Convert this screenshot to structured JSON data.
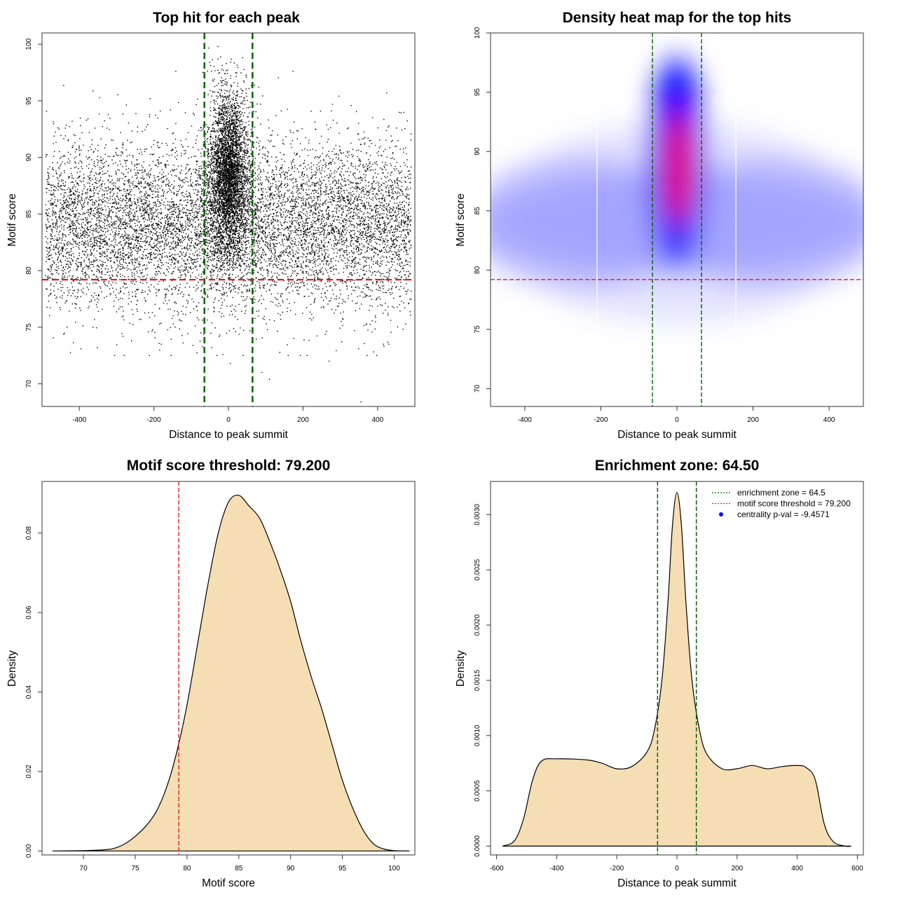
{
  "chart_data": [
    {
      "id": "p1",
      "type": "scatter",
      "title": "Top hit for each peak",
      "xlabel": "Distance to peak summit",
      "ylabel": "Motif score",
      "xlim": [
        -500,
        500
      ],
      "ylim": [
        68,
        101
      ],
      "xticks": [
        -400,
        -200,
        0,
        200,
        400
      ],
      "yticks": [
        70,
        75,
        80,
        85,
        90,
        95,
        100
      ],
      "vlines": [
        -64.5,
        64.5
      ],
      "hline": 79.2,
      "vline_color": "#006400",
      "hline_color": "#e31a1c",
      "point_color": "#000000",
      "point_count_estimate": 12000,
      "distribution": "uniform background around score 84 across -490..490 plus a dense central cluster around distance 0 and score 88"
    },
    {
      "id": "p2",
      "type": "heatmap",
      "title": "Density heat map for the top hits",
      "xlabel": "Distance to peak summit",
      "ylabel": "Motif score",
      "xlim": [
        -490,
        490
      ],
      "ylim": [
        68.5,
        100
      ],
      "xticks": [
        -400,
        -200,
        0,
        200,
        400
      ],
      "yticks": [
        70,
        75,
        80,
        85,
        90,
        95,
        100
      ],
      "vlines": [
        -64.5,
        64.5
      ],
      "hline": 79.2,
      "color_scale": [
        "#ffffff",
        "#0000ff",
        "#ff0000"
      ]
    },
    {
      "id": "p3",
      "type": "area",
      "title": "Motif score threshold: 79.200",
      "xlabel": "Motif score",
      "ylabel": "Density",
      "xlim": [
        66,
        102
      ],
      "ylim": [
        -0.001,
        0.093
      ],
      "xticks": [
        70,
        75,
        80,
        85,
        90,
        95,
        100
      ],
      "yticks": [
        0.0,
        0.02,
        0.04,
        0.06,
        0.08
      ],
      "ytick_labels": [
        "0.00",
        "0.02",
        "0.04",
        "0.06",
        "0.08"
      ],
      "vline": 79.2,
      "fill": "#f5deb3",
      "x": [
        67.0,
        70.0,
        72.0,
        73.0,
        74.0,
        75.0,
        76.0,
        77.0,
        78.0,
        79.0,
        80.0,
        81.0,
        82.0,
        83.0,
        84.0,
        85.0,
        86.0,
        87.0,
        88.0,
        89.0,
        90.0,
        91.0,
        92.0,
        93.0,
        94.0,
        95.0,
        96.0,
        97.0,
        98.0,
        99.0,
        100.0,
        101.5
      ],
      "y": [
        0.0,
        0.0001,
        0.0003,
        0.0007,
        0.0018,
        0.0037,
        0.0062,
        0.0098,
        0.0158,
        0.0248,
        0.0368,
        0.0518,
        0.0668,
        0.0798,
        0.0878,
        0.0895,
        0.0868,
        0.0838,
        0.0778,
        0.0708,
        0.0628,
        0.0528,
        0.0438,
        0.0358,
        0.0268,
        0.0178,
        0.0108,
        0.0053,
        0.0018,
        0.0005,
        0.0001,
        0.0
      ]
    },
    {
      "id": "p4",
      "type": "area",
      "title": "Enrichment zone: 64.50",
      "xlabel": "Distance to peak summit",
      "ylabel": "Density",
      "xlim": [
        -620,
        620
      ],
      "ylim": [
        -8e-05,
        0.0033
      ],
      "xticks": [
        -600,
        -400,
        -200,
        0,
        200,
        400,
        600
      ],
      "yticks": [
        0.0,
        0.0005,
        0.001,
        0.0015,
        0.002,
        0.0025,
        0.003
      ],
      "ytick_labels": [
        "0.0000",
        "0.0005",
        "0.0010",
        "0.0015",
        "0.0020",
        "0.0025",
        "0.0030"
      ],
      "vlines": [
        -64.5,
        64.5
      ],
      "fill": "#f5deb3",
      "x": [
        -580,
        -540,
        -510,
        -480,
        -450,
        -400,
        -300,
        -250,
        -200,
        -150,
        -100,
        -75,
        -50,
        -30,
        -15,
        0,
        15,
        30,
        50,
        75,
        100,
        150,
        200,
        250,
        300,
        350,
        400,
        430,
        460,
        490,
        520,
        560,
        580
      ],
      "y": [
        0.0,
        5e-05,
        0.00025,
        0.0006,
        0.00077,
        0.00079,
        0.00078,
        0.00075,
        0.0007,
        0.00072,
        0.00085,
        0.00105,
        0.0015,
        0.0022,
        0.0029,
        0.0032,
        0.0029,
        0.0022,
        0.0015,
        0.00105,
        0.00083,
        0.0007,
        0.0007,
        0.00073,
        0.0007,
        0.00072,
        0.00073,
        0.00071,
        0.0006,
        0.0002,
        4e-05,
        0.0,
        0.0
      ],
      "legend": [
        {
          "label": "enrichment zone = 64.5",
          "color": "#006400",
          "style": "dotted-line"
        },
        {
          "label": "motif score threshold = 79.200",
          "color": "#e31a1c",
          "style": "dotted-line"
        },
        {
          "label": "centrality p-val = -9.4571",
          "color": "#0000ff",
          "style": "point"
        }
      ],
      "legend_position": "top-right"
    }
  ]
}
